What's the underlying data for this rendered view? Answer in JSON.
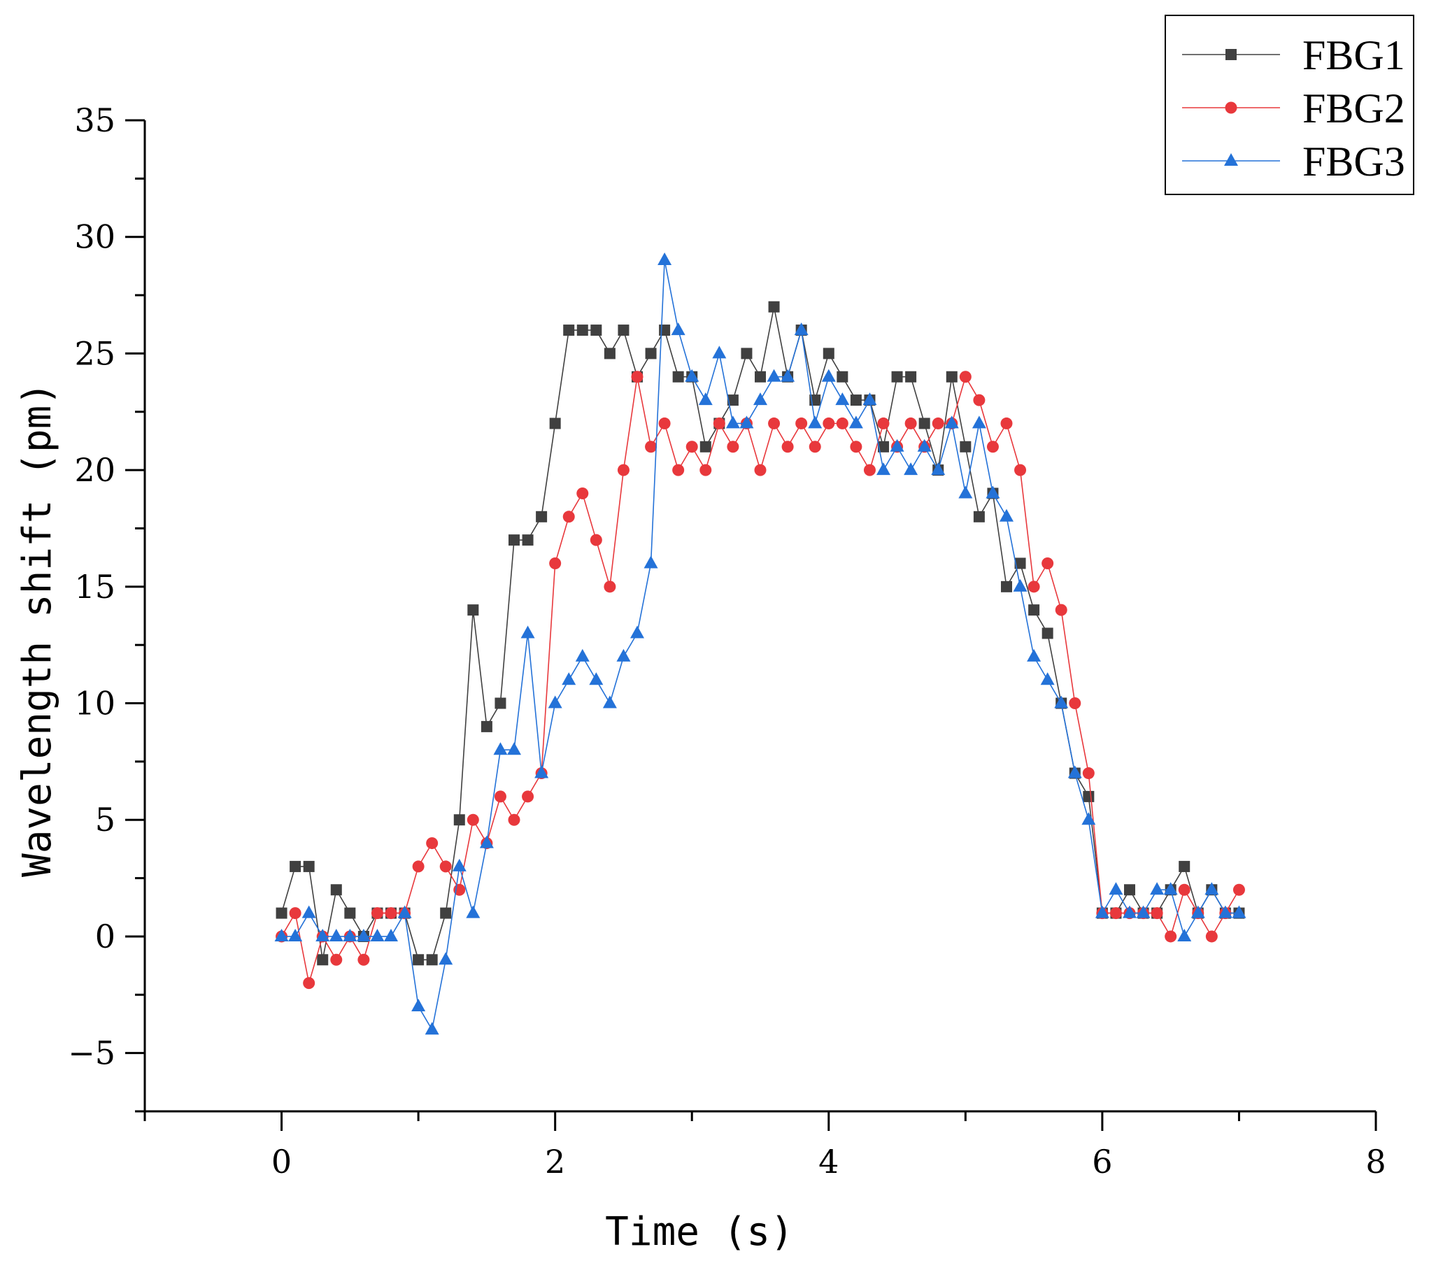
{
  "chart_data": {
    "type": "line",
    "title": "",
    "xlabel": "Time (s)",
    "ylabel": "Wavelength shift (pm)",
    "xlim": [
      -1,
      8
    ],
    "ylim": [
      -7.5,
      35
    ],
    "xticks": [
      0,
      2,
      4,
      6,
      8
    ],
    "yticks": [
      -5,
      0,
      5,
      10,
      15,
      20,
      25,
      30,
      35
    ],
    "xtick_labels": [
      "0",
      "2",
      "4",
      "6",
      "8"
    ],
    "ytick_labels": [
      "−5",
      "0",
      "5",
      "10",
      "15",
      "20",
      "25",
      "30",
      "35"
    ],
    "grid": false,
    "legend_position": "top-right",
    "x": [
      0,
      0.1,
      0.2,
      0.3,
      0.4,
      0.5,
      0.6,
      0.7,
      0.8,
      0.9,
      1.0,
      1.1,
      1.2,
      1.3,
      1.4,
      1.5,
      1.6,
      1.7,
      1.8,
      1.9,
      2.0,
      2.1,
      2.2,
      2.3,
      2.4,
      2.5,
      2.6,
      2.7,
      2.8,
      2.9,
      3.0,
      3.1,
      3.2,
      3.3,
      3.4,
      3.5,
      3.6,
      3.7,
      3.8,
      3.9,
      4.0,
      4.1,
      4.2,
      4.3,
      4.4,
      4.5,
      4.6,
      4.7,
      4.8,
      4.9,
      5.0,
      5.1,
      5.2,
      5.3,
      5.4,
      5.5,
      5.6,
      5.7,
      5.8,
      5.9,
      6.0,
      6.1,
      6.2,
      6.3,
      6.4,
      6.5,
      6.6,
      6.7,
      6.8,
      6.9,
      7.0
    ],
    "series": [
      {
        "name": "FBG1",
        "color": "#404040",
        "marker": "square",
        "values": [
          1,
          3,
          3,
          -1,
          2,
          1,
          0,
          1,
          1,
          1,
          -1,
          -1,
          1,
          5,
          14,
          9,
          10,
          17,
          17,
          18,
          22,
          26,
          26,
          26,
          25,
          26,
          24,
          25,
          26,
          24,
          24,
          21,
          22,
          23,
          25,
          24,
          27,
          24,
          26,
          23,
          25,
          24,
          23,
          23,
          21,
          24,
          24,
          22,
          20,
          24,
          21,
          18,
          19,
          15,
          16,
          14,
          13,
          10,
          7,
          6,
          1,
          1,
          2,
          1,
          1,
          2,
          3,
          1,
          2,
          1,
          1
        ]
      },
      {
        "name": "FBG2",
        "color": "#e8383c",
        "marker": "circle",
        "values": [
          0,
          1,
          -2,
          0,
          -1,
          0,
          -1,
          1,
          1,
          1,
          3,
          4,
          3,
          2,
          5,
          4,
          6,
          5,
          6,
          7,
          16,
          18,
          19,
          17,
          15,
          20,
          24,
          21,
          22,
          20,
          21,
          20,
          22,
          21,
          22,
          20,
          22,
          21,
          22,
          21,
          22,
          22,
          21,
          20,
          22,
          21,
          22,
          21,
          22,
          22,
          24,
          23,
          21,
          22,
          20,
          15,
          16,
          14,
          10,
          7,
          1,
          1,
          1,
          1,
          1,
          0,
          2,
          1,
          0,
          1,
          2
        ]
      },
      {
        "name": "FBG3",
        "color": "#2472d8",
        "marker": "triangle",
        "values": [
          0,
          0,
          1,
          0,
          0,
          0,
          0,
          0,
          0,
          1,
          -3,
          -4,
          -1,
          3,
          1,
          4,
          8,
          8,
          13,
          7,
          10,
          11,
          12,
          11,
          10,
          12,
          13,
          16,
          29,
          26,
          24,
          23,
          25,
          22,
          22,
          23,
          24,
          24,
          26,
          22,
          24,
          23,
          22,
          23,
          20,
          21,
          20,
          21,
          20,
          22,
          19,
          22,
          19,
          18,
          15,
          12,
          11,
          10,
          7,
          5,
          1,
          2,
          1,
          1,
          2,
          2,
          0,
          1,
          2,
          1,
          1
        ]
      }
    ]
  }
}
